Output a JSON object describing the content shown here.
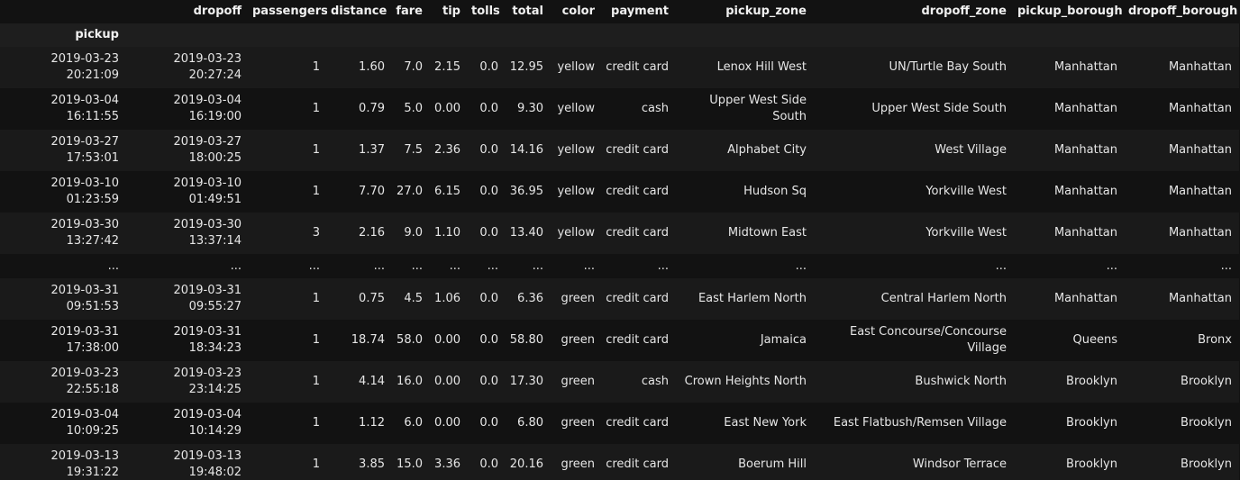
{
  "table": {
    "columns": [
      "dropoff",
      "passengers",
      "distance",
      "fare",
      "tip",
      "tolls",
      "total",
      "color",
      "payment",
      "pickup_zone",
      "dropoff_zone",
      "pickup_borough",
      "dropoff_borough"
    ],
    "index_name": "pickup",
    "rows": [
      {
        "index": "2019-03-23 20:21:09",
        "cells": [
          "2019-03-23 20:27:24",
          "1",
          "1.60",
          "7.0",
          "2.15",
          "0.0",
          "12.95",
          "yellow",
          "credit card",
          "Lenox Hill West",
          "UN/Turtle Bay South",
          "Manhattan",
          "Manhattan"
        ]
      },
      {
        "index": "2019-03-04 16:11:55",
        "cells": [
          "2019-03-04 16:19:00",
          "1",
          "0.79",
          "5.0",
          "0.00",
          "0.0",
          "9.30",
          "yellow",
          "cash",
          "Upper West Side South",
          "Upper West Side South",
          "Manhattan",
          "Manhattan"
        ]
      },
      {
        "index": "2019-03-27 17:53:01",
        "cells": [
          "2019-03-27 18:00:25",
          "1",
          "1.37",
          "7.5",
          "2.36",
          "0.0",
          "14.16",
          "yellow",
          "credit card",
          "Alphabet City",
          "West Village",
          "Manhattan",
          "Manhattan"
        ]
      },
      {
        "index": "2019-03-10 01:23:59",
        "cells": [
          "2019-03-10 01:49:51",
          "1",
          "7.70",
          "27.0",
          "6.15",
          "0.0",
          "36.95",
          "yellow",
          "credit card",
          "Hudson Sq",
          "Yorkville West",
          "Manhattan",
          "Manhattan"
        ]
      },
      {
        "index": "2019-03-30 13:27:42",
        "cells": [
          "2019-03-30 13:37:14",
          "3",
          "2.16",
          "9.0",
          "1.10",
          "0.0",
          "13.40",
          "yellow",
          "credit card",
          "Midtown East",
          "Yorkville West",
          "Manhattan",
          "Manhattan"
        ]
      },
      {
        "index": "...",
        "cells": [
          "...",
          "...",
          "...",
          "...",
          "...",
          "...",
          "...",
          "...",
          "...",
          "...",
          "...",
          "...",
          "..."
        ]
      },
      {
        "index": "2019-03-31 09:51:53",
        "cells": [
          "2019-03-31 09:55:27",
          "1",
          "0.75",
          "4.5",
          "1.06",
          "0.0",
          "6.36",
          "green",
          "credit card",
          "East Harlem North",
          "Central Harlem North",
          "Manhattan",
          "Manhattan"
        ]
      },
      {
        "index": "2019-03-31 17:38:00",
        "cells": [
          "2019-03-31 18:34:23",
          "1",
          "18.74",
          "58.0",
          "0.00",
          "0.0",
          "58.80",
          "green",
          "credit card",
          "Jamaica",
          "East Concourse/Concourse Village",
          "Queens",
          "Bronx"
        ]
      },
      {
        "index": "2019-03-23 22:55:18",
        "cells": [
          "2019-03-23 23:14:25",
          "1",
          "4.14",
          "16.0",
          "0.00",
          "0.0",
          "17.30",
          "green",
          "cash",
          "Crown Heights North",
          "Bushwick North",
          "Brooklyn",
          "Brooklyn"
        ]
      },
      {
        "index": "2019-03-04 10:09:25",
        "cells": [
          "2019-03-04 10:14:29",
          "1",
          "1.12",
          "6.0",
          "0.00",
          "0.0",
          "6.80",
          "green",
          "credit card",
          "East New York",
          "East Flatbush/Remsen Village",
          "Brooklyn",
          "Brooklyn"
        ]
      },
      {
        "index": "2019-03-13 19:31:22",
        "cells": [
          "2019-03-13 19:48:02",
          "1",
          "3.85",
          "15.0",
          "3.36",
          "0.0",
          "20.16",
          "green",
          "credit card",
          "Boerum Hill",
          "Windsor Terrace",
          "Brooklyn",
          "Brooklyn"
        ]
      }
    ]
  }
}
